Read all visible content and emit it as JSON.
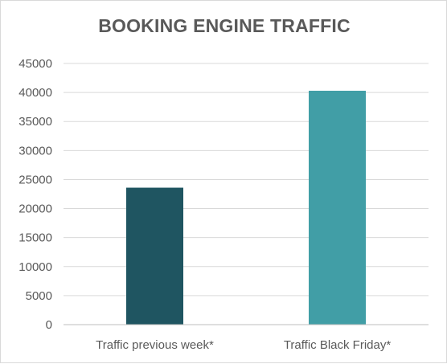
{
  "chart_data": {
    "type": "bar",
    "title": "BOOKING ENGINE TRAFFIC",
    "categories": [
      "Traffic previous week*",
      "Traffic Black Friday*"
    ],
    "values": [
      23600,
      40300
    ],
    "bar_colors": [
      "#1f5561",
      "#419ea6"
    ],
    "ylim": [
      0,
      45000
    ],
    "yticks": [
      "0",
      "5000",
      "10000",
      "15000",
      "20000",
      "25000",
      "30000",
      "35000",
      "40000",
      "45000"
    ],
    "grid": true,
    "legend": "none",
    "xlabel": "",
    "ylabel": ""
  }
}
